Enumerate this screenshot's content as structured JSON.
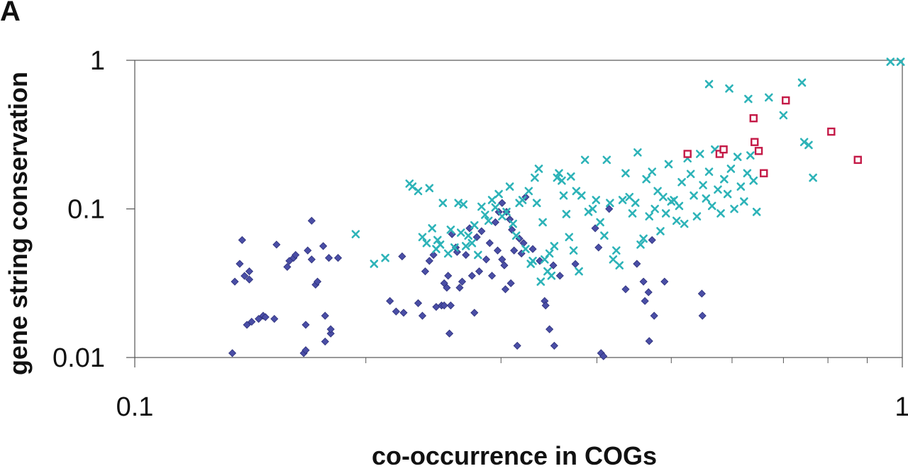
{
  "panel_letter": "A",
  "chart_data": {
    "type": "scatter",
    "xlabel": "co-occurrence in COGs",
    "ylabel": "gene string conservation",
    "x_scale": "log",
    "y_scale": "log",
    "xlim": [
      0.1,
      1
    ],
    "ylim": [
      0.01,
      1
    ],
    "x_ticks": [
      "0.1",
      "1"
    ],
    "y_ticks": [
      "0.01",
      "0.1",
      "1"
    ],
    "grid": false,
    "series": [
      {
        "marker": "diamond",
        "color": "#4a4ea6",
        "points": [
          [
            0.134,
            0.0107
          ],
          [
            0.135,
            0.0324
          ],
          [
            0.137,
            0.0427
          ],
          [
            0.138,
            0.0617
          ],
          [
            0.139,
            0.0354
          ],
          [
            0.14,
            0.0166
          ],
          [
            0.141,
            0.038
          ],
          [
            0.141,
            0.0335
          ],
          [
            0.142,
            0.0174
          ],
          [
            0.145,
            0.0182
          ],
          [
            0.147,
            0.0191
          ],
          [
            0.148,
            0.0187
          ],
          [
            0.152,
            0.0182
          ],
          [
            0.153,
            0.0575
          ],
          [
            0.158,
            0.0407
          ],
          [
            0.159,
            0.0447
          ],
          [
            0.161,
            0.0468
          ],
          [
            0.162,
            0.049
          ],
          [
            0.166,
            0.0107
          ],
          [
            0.167,
            0.0112
          ],
          [
            0.167,
            0.0166
          ],
          [
            0.168,
            0.0525
          ],
          [
            0.17,
            0.0832
          ],
          [
            0.17,
            0.0457
          ],
          [
            0.172,
            0.0309
          ],
          [
            0.173,
            0.0324
          ],
          [
            0.176,
            0.0562
          ],
          [
            0.177,
            0.0191
          ],
          [
            0.177,
            0.0128
          ],
          [
            0.179,
            0.0468
          ],
          [
            0.18,
            0.0145
          ],
          [
            0.18,
            0.0155
          ],
          [
            0.184,
            0.0468
          ],
          [
            0.215,
            0.024
          ],
          [
            0.219,
            0.0204
          ],
          [
            0.223,
            0.0479
          ],
          [
            0.224,
            0.02
          ],
          [
            0.234,
            0.0232
          ],
          [
            0.237,
            0.0191
          ],
          [
            0.239,
            0.038
          ],
          [
            0.242,
            0.0447
          ],
          [
            0.245,
            0.049
          ],
          [
            0.247,
            0.0219
          ],
          [
            0.251,
            0.0224
          ],
          [
            0.253,
            0.0224
          ],
          [
            0.253,
            0.0316
          ],
          [
            0.255,
            0.0295
          ],
          [
            0.256,
            0.0355
          ],
          [
            0.257,
            0.0145
          ],
          [
            0.258,
            0.0224
          ],
          [
            0.259,
            0.0676
          ],
          [
            0.262,
            0.055
          ],
          [
            0.263,
            0.0513
          ],
          [
            0.265,
            0.0295
          ],
          [
            0.267,
            0.0324
          ],
          [
            0.27,
            0.049
          ],
          [
            0.273,
            0.0741
          ],
          [
            0.275,
            0.0355
          ],
          [
            0.277,
            0.02
          ],
          [
            0.279,
            0.0646
          ],
          [
            0.281,
            0.038
          ],
          [
            0.283,
            0.0708
          ],
          [
            0.287,
            0.0457
          ],
          [
            0.29,
            0.0589
          ],
          [
            0.292,
            0.0355
          ],
          [
            0.295,
            0.0813
          ],
          [
            0.297,
            0.0525
          ],
          [
            0.298,
            0.0955
          ],
          [
            0.301,
            0.0457
          ],
          [
            0.301,
            0.1096
          ],
          [
            0.303,
            0.0417
          ],
          [
            0.304,
            0.0288
          ],
          [
            0.305,
            0.0955
          ],
          [
            0.308,
            0.0851
          ],
          [
            0.309,
            0.0316
          ],
          [
            0.31,
            0.0724
          ],
          [
            0.312,
            0.0525
          ],
          [
            0.315,
            0.012
          ],
          [
            0.317,
            0.0631
          ],
          [
            0.319,
            0.0501
          ],
          [
            0.321,
            0.0589
          ],
          [
            0.323,
            0.1202
          ],
          [
            0.33,
            0.0537
          ],
          [
            0.337,
            0.0447
          ],
          [
            0.342,
            0.024
          ],
          [
            0.343,
            0.0224
          ],
          [
            0.347,
            0.0155
          ],
          [
            0.351,
            0.0417
          ],
          [
            0.352,
            0.012
          ],
          [
            0.358,
            0.0355
          ],
          [
            0.375,
            0.0426
          ],
          [
            0.398,
            0.0741
          ],
          [
            0.402,
            0.055
          ],
          [
            0.405,
            0.0107
          ],
          [
            0.408,
            0.0102
          ],
          [
            0.415,
            0.1
          ],
          [
            0.436,
            0.0288
          ],
          [
            0.451,
            0.0427
          ],
          [
            0.46,
            0.0324
          ],
          [
            0.462,
            0.024
          ],
          [
            0.467,
            0.0275
          ],
          [
            0.468,
            0.0129
          ],
          [
            0.472,
            0.0617
          ],
          [
            0.475,
            0.0191
          ],
          [
            0.49,
            0.0324
          ],
          [
            0.548,
            0.0269
          ],
          [
            0.549,
            0.0191
          ]
        ]
      },
      {
        "marker": "x",
        "color": "#2db3b8",
        "points": [
          [
            0.194,
            0.0676
          ],
          [
            0.205,
            0.0427
          ],
          [
            0.212,
            0.0468
          ],
          [
            0.228,
            0.1479
          ],
          [
            0.23,
            0.1413
          ],
          [
            0.234,
            0.1318
          ],
          [
            0.237,
            0.0646
          ],
          [
            0.24,
            0.0589
          ],
          [
            0.242,
            0.138
          ],
          [
            0.244,
            0.0741
          ],
          [
            0.247,
            0.0537
          ],
          [
            0.248,
            0.0617
          ],
          [
            0.25,
            0.0575
          ],
          [
            0.252,
            0.1096
          ],
          [
            0.256,
            0.0501
          ],
          [
            0.258,
            0.0724
          ],
          [
            0.261,
            0.055
          ],
          [
            0.264,
            0.1096
          ],
          [
            0.266,
            0.0692
          ],
          [
            0.268,
            0.1072
          ],
          [
            0.27,
            0.0562
          ],
          [
            0.272,
            0.0661
          ],
          [
            0.275,
            0.0589
          ],
          [
            0.277,
            0.0776
          ],
          [
            0.28,
            0.049
          ],
          [
            0.283,
            0.1035
          ],
          [
            0.286,
            0.0912
          ],
          [
            0.289,
            0.0832
          ],
          [
            0.292,
            0.1148
          ],
          [
            0.295,
            0.1023
          ],
          [
            0.298,
            0.1259
          ],
          [
            0.301,
            0.0891
          ],
          [
            0.305,
            0.0955
          ],
          [
            0.308,
            0.1413
          ],
          [
            0.311,
            0.0794
          ],
          [
            0.314,
            0.0661
          ],
          [
            0.317,
            0.1096
          ],
          [
            0.32,
            0.1148
          ],
          [
            0.323,
            0.0537
          ],
          [
            0.326,
            0.1318
          ],
          [
            0.328,
            0.0427
          ],
          [
            0.33,
            0.0447
          ],
          [
            0.332,
            0.1622
          ],
          [
            0.334,
            0.1096
          ],
          [
            0.336,
            0.1862
          ],
          [
            0.338,
            0.0324
          ],
          [
            0.34,
            0.0813
          ],
          [
            0.342,
            0.0457
          ],
          [
            0.345,
            0.038
          ],
          [
            0.347,
            0.0501
          ],
          [
            0.349,
            0.0355
          ],
          [
            0.352,
            0.0562
          ],
          [
            0.355,
            0.1622
          ],
          [
            0.357,
            0.1738
          ],
          [
            0.36,
            0.1549
          ],
          [
            0.362,
            0.123
          ],
          [
            0.365,
            0.0923
          ],
          [
            0.368,
            0.0646
          ],
          [
            0.37,
            0.1652
          ],
          [
            0.373,
            0.0525
          ],
          [
            0.376,
            0.1318
          ],
          [
            0.379,
            0.038
          ],
          [
            0.382,
            0.123
          ],
          [
            0.386,
            0.2138
          ],
          [
            0.39,
            0.0955
          ],
          [
            0.395,
            0.1
          ],
          [
            0.399,
            0.1148
          ],
          [
            0.404,
            0.0813
          ],
          [
            0.409,
            0.0661
          ],
          [
            0.412,
            0.2138
          ],
          [
            0.416,
            0.1096
          ],
          [
            0.42,
            0.0457
          ],
          [
            0.424,
            0.0525
          ],
          [
            0.428,
            0.0417
          ],
          [
            0.432,
            0.1148
          ],
          [
            0.436,
            0.1738
          ],
          [
            0.441,
            0.1202
          ],
          [
            0.445,
            0.0933
          ],
          [
            0.449,
            0.1099
          ],
          [
            0.452,
            0.2399
          ],
          [
            0.456,
            0.0575
          ],
          [
            0.46,
            0.0631
          ],
          [
            0.464,
            0.1585
          ],
          [
            0.468,
            0.0891
          ],
          [
            0.472,
            0.1778
          ],
          [
            0.476,
            0.1
          ],
          [
            0.48,
            0.1318
          ],
          [
            0.484,
            0.0708
          ],
          [
            0.488,
            0.1202
          ],
          [
            0.492,
            0.0933
          ],
          [
            0.496,
            0.2
          ],
          [
            0.5,
            0.1122
          ],
          [
            0.504,
            0.1148
          ],
          [
            0.508,
            0.0832
          ],
          [
            0.512,
            0.1047
          ],
          [
            0.516,
            0.1514
          ],
          [
            0.52,
            0.0794
          ],
          [
            0.525,
            0.2188
          ],
          [
            0.53,
            0.1718
          ],
          [
            0.535,
            0.123
          ],
          [
            0.54,
            0.0891
          ],
          [
            0.545,
            0.2344
          ],
          [
            0.55,
            0.1445
          ],
          [
            0.555,
            0.1175
          ],
          [
            0.56,
            0.1778
          ],
          [
            0.565,
            0.1047
          ],
          [
            0.57,
            0.2512
          ],
          [
            0.575,
            0.1349
          ],
          [
            0.58,
            0.0933
          ],
          [
            0.586,
            0.1585
          ],
          [
            0.592,
            0.1259
          ],
          [
            0.598,
            0.1862
          ],
          [
            0.604,
            0.1
          ],
          [
            0.61,
            0.2239
          ],
          [
            0.616,
            0.1413
          ],
          [
            0.622,
            0.1122
          ],
          [
            0.628,
            0.1738
          ],
          [
            0.634,
            0.2291
          ],
          [
            0.64,
            0.1549
          ],
          [
            0.646,
            0.0955
          ],
          [
            0.56,
            0.6918
          ],
          [
            0.595,
            0.6457
          ],
          [
            0.63,
            0.5495
          ],
          [
            0.67,
            0.5623
          ],
          [
            0.7,
            0.4266
          ],
          [
            0.74,
            0.7079
          ],
          [
            0.745,
            0.2818
          ],
          [
            0.755,
            0.2692
          ],
          [
            0.765,
            0.1621
          ],
          [
            0.965,
            0.9772
          ],
          [
            0.995,
            0.9772
          ]
        ]
      },
      {
        "marker": "square",
        "color": "#c41a47",
        "points": [
          [
            0.525,
            0.2344
          ],
          [
            0.578,
            0.2344
          ],
          [
            0.585,
            0.2512
          ],
          [
            0.64,
            0.4074
          ],
          [
            0.642,
            0.2818
          ],
          [
            0.65,
            0.2455
          ],
          [
            0.66,
            0.1738
          ],
          [
            0.705,
            0.537
          ],
          [
            0.808,
            0.3311
          ],
          [
            0.875,
            0.2138
          ]
        ]
      }
    ]
  }
}
